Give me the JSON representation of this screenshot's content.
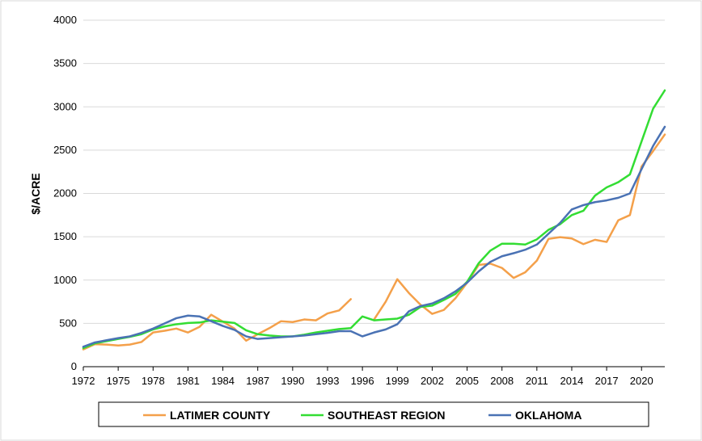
{
  "chart_data": {
    "type": "line",
    "title": "",
    "xlabel": "",
    "ylabel": "$/ACRE",
    "ylim": [
      0,
      4000
    ],
    "yticks": [
      0,
      500,
      1000,
      1500,
      2000,
      2500,
      3000,
      3500,
      4000
    ],
    "xlim": [
      1972,
      2022
    ],
    "xticks": [
      1972,
      1975,
      1978,
      1981,
      1984,
      1987,
      1990,
      1993,
      1996,
      1999,
      2002,
      2005,
      2008,
      2011,
      2014,
      2017,
      2020
    ],
    "grid": "horizontal",
    "legend_position": "bottom",
    "series": [
      {
        "name": "LATIMER COUNTY",
        "color": "#f4a04a",
        "points": [
          [
            1972,
            200
          ],
          [
            1973,
            260
          ],
          [
            1974,
            255
          ],
          [
            1975,
            245
          ],
          [
            1976,
            255
          ],
          [
            1977,
            285
          ],
          [
            1978,
            395
          ],
          [
            1979,
            415
          ],
          [
            1980,
            440
          ],
          [
            1981,
            395
          ],
          [
            1982,
            460
          ],
          [
            1983,
            600
          ],
          [
            1984,
            520
          ],
          [
            1985,
            440
          ],
          [
            1986,
            300
          ],
          [
            1987,
            375
          ],
          [
            1988,
            445
          ],
          [
            1989,
            525
          ],
          [
            1990,
            515
          ],
          [
            1991,
            545
          ],
          [
            1992,
            535
          ],
          [
            1993,
            615
          ],
          [
            1994,
            650
          ],
          [
            1995,
            780
          ],
          null,
          [
            1997,
            545
          ],
          [
            1998,
            750
          ],
          [
            1999,
            1010
          ],
          [
            2000,
            850
          ],
          [
            2001,
            715
          ],
          [
            2002,
            610
          ],
          [
            2003,
            655
          ],
          [
            2004,
            790
          ],
          [
            2005,
            970
          ],
          [
            2006,
            1175
          ],
          [
            2007,
            1190
          ],
          [
            2008,
            1140
          ],
          [
            2009,
            1025
          ],
          [
            2010,
            1090
          ],
          [
            2011,
            1225
          ],
          [
            2012,
            1475
          ],
          [
            2013,
            1495
          ],
          [
            2014,
            1480
          ],
          [
            2015,
            1415
          ],
          [
            2016,
            1465
          ],
          [
            2017,
            1440
          ],
          [
            2018,
            1690
          ],
          [
            2019,
            1750
          ],
          [
            2020,
            2310
          ],
          [
            2021,
            2490
          ],
          [
            2022,
            2680
          ]
        ]
      },
      {
        "name": "SOUTHEAST REGION",
        "color": "#33dd33",
        "points": [
          [
            1972,
            215
          ],
          [
            1973,
            270
          ],
          [
            1974,
            295
          ],
          [
            1975,
            320
          ],
          [
            1976,
            345
          ],
          [
            1977,
            375
          ],
          [
            1978,
            430
          ],
          [
            1979,
            465
          ],
          [
            1980,
            490
          ],
          [
            1981,
            505
          ],
          [
            1982,
            510
          ],
          [
            1983,
            535
          ],
          [
            1984,
            520
          ],
          [
            1985,
            505
          ],
          [
            1986,
            420
          ],
          [
            1987,
            375
          ],
          [
            1988,
            360
          ],
          [
            1989,
            350
          ],
          [
            1990,
            350
          ],
          [
            1991,
            370
          ],
          [
            1992,
            395
          ],
          [
            1993,
            415
          ],
          [
            1994,
            435
          ],
          [
            1995,
            445
          ],
          [
            1996,
            580
          ],
          [
            1997,
            535
          ],
          [
            1998,
            545
          ],
          [
            1999,
            555
          ],
          [
            2000,
            600
          ],
          [
            2001,
            690
          ],
          [
            2002,
            705
          ],
          [
            2003,
            770
          ],
          [
            2004,
            840
          ],
          [
            2005,
            980
          ],
          [
            2006,
            1195
          ],
          [
            2007,
            1340
          ],
          [
            2008,
            1420
          ],
          [
            2009,
            1420
          ],
          [
            2010,
            1410
          ],
          [
            2011,
            1470
          ],
          [
            2012,
            1580
          ],
          [
            2013,
            1645
          ],
          [
            2014,
            1750
          ],
          [
            2015,
            1800
          ],
          [
            2016,
            1975
          ],
          [
            2017,
            2070
          ],
          [
            2018,
            2130
          ],
          [
            2019,
            2220
          ],
          [
            2020,
            2600
          ],
          [
            2021,
            2980
          ],
          [
            2022,
            3190
          ]
        ]
      },
      {
        "name": "OKLAHOMA",
        "color": "#4a72b4",
        "points": [
          [
            1972,
            230
          ],
          [
            1973,
            280
          ],
          [
            1974,
            305
          ],
          [
            1975,
            330
          ],
          [
            1976,
            350
          ],
          [
            1977,
            390
          ],
          [
            1978,
            440
          ],
          [
            1979,
            500
          ],
          [
            1980,
            560
          ],
          [
            1981,
            590
          ],
          [
            1982,
            580
          ],
          [
            1983,
            525
          ],
          [
            1984,
            470
          ],
          [
            1985,
            425
          ],
          [
            1986,
            350
          ],
          [
            1987,
            320
          ],
          [
            1988,
            330
          ],
          [
            1989,
            340
          ],
          [
            1990,
            350
          ],
          [
            1991,
            360
          ],
          [
            1992,
            375
          ],
          [
            1993,
            390
          ],
          [
            1994,
            410
          ],
          [
            1995,
            410
          ],
          [
            1996,
            350
          ],
          [
            1997,
            395
          ],
          [
            1998,
            430
          ],
          [
            1999,
            490
          ],
          [
            2000,
            640
          ],
          [
            2001,
            700
          ],
          [
            2002,
            730
          ],
          [
            2003,
            790
          ],
          [
            2004,
            870
          ],
          [
            2005,
            970
          ],
          [
            2006,
            1100
          ],
          [
            2007,
            1210
          ],
          [
            2008,
            1275
          ],
          [
            2009,
            1310
          ],
          [
            2010,
            1350
          ],
          [
            2011,
            1410
          ],
          [
            2012,
            1535
          ],
          [
            2013,
            1660
          ],
          [
            2014,
            1815
          ],
          [
            2015,
            1865
          ],
          [
            2016,
            1900
          ],
          [
            2017,
            1920
          ],
          [
            2018,
            1950
          ],
          [
            2019,
            2000
          ],
          [
            2020,
            2280
          ],
          [
            2021,
            2550
          ],
          [
            2022,
            2770
          ]
        ]
      }
    ]
  }
}
